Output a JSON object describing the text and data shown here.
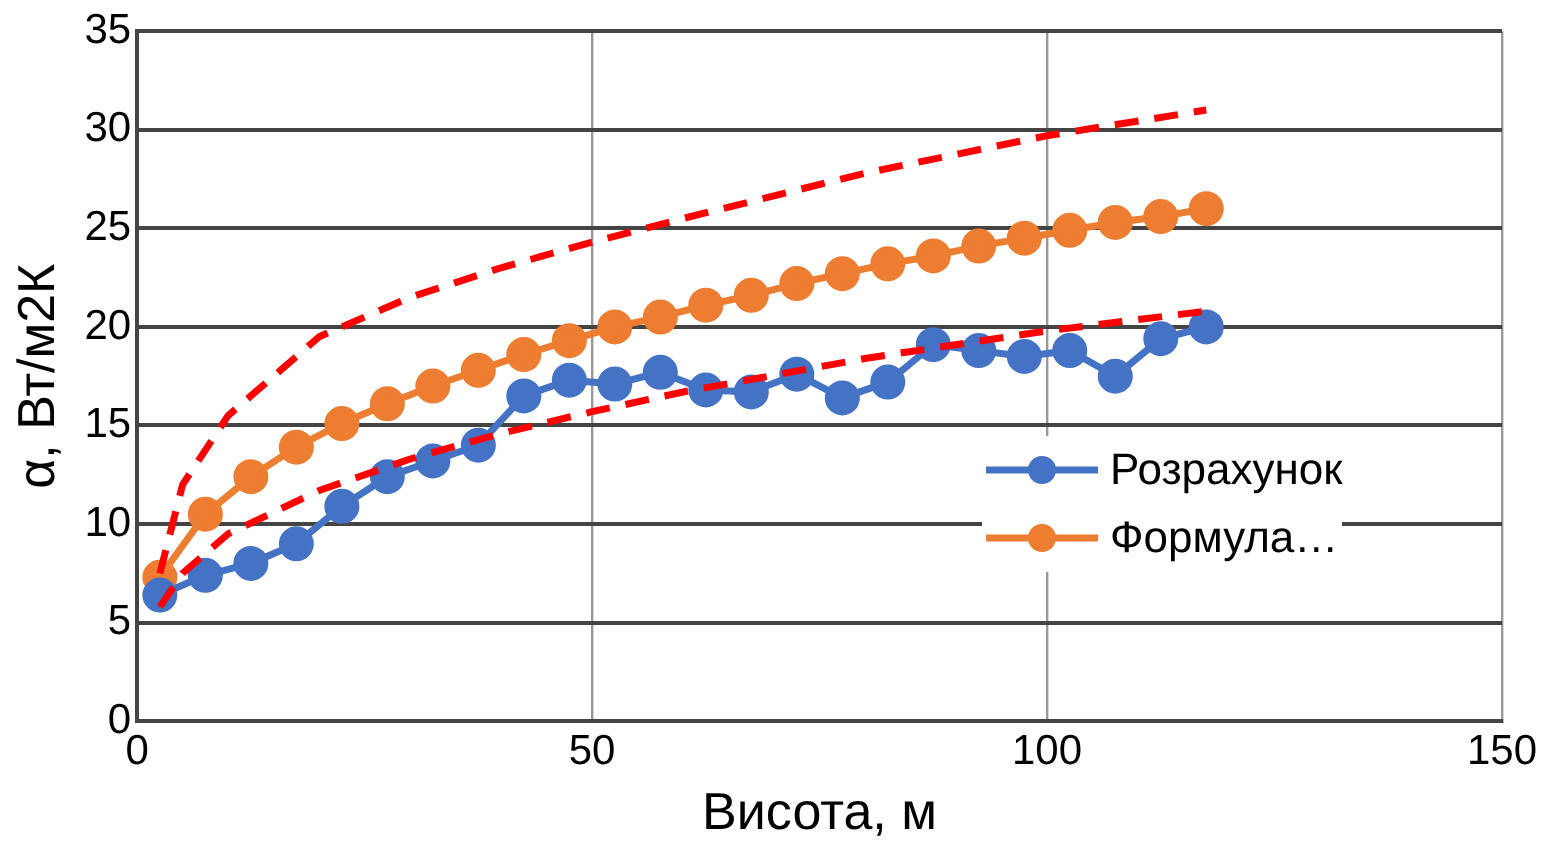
{
  "chart_data": {
    "type": "line",
    "xlabel": "Висота, м",
    "ylabel": "α, Вт/м2К",
    "xlim": [
      0,
      150
    ],
    "xticks": [
      0,
      50,
      100,
      150
    ],
    "ylim": [
      0,
      35
    ],
    "yticks": [
      0,
      5,
      10,
      15,
      20,
      25,
      30,
      35
    ],
    "grid": true,
    "legend": "right",
    "marker": "circle",
    "line_style": "solid",
    "x": [
      2.5,
      7.5,
      12.5,
      17.5,
      22.5,
      27.5,
      32.5,
      37.5,
      42.5,
      47.5,
      52.5,
      57.5,
      62.5,
      67.5,
      72.5,
      77.5,
      82.5,
      87.5,
      92.5,
      97.5,
      102.5,
      107.5,
      112.5,
      117.5
    ],
    "series": [
      {
        "name": "Розрахунок",
        "color": "#4472c4",
        "values": [
          6.4,
          7.4,
          8.0,
          9.0,
          10.9,
          12.4,
          13.2,
          14.0,
          16.5,
          17.3,
          17.1,
          17.7,
          16.8,
          16.7,
          17.6,
          16.4,
          17.2,
          19.1,
          18.8,
          18.5,
          18.8,
          17.5,
          19.4,
          20.0
        ]
      },
      {
        "name": "Формула…",
        "color": "#ed7d31",
        "values": [
          7.3,
          10.5,
          12.4,
          13.9,
          15.1,
          16.1,
          17.0,
          17.8,
          18.6,
          19.3,
          20.0,
          20.5,
          21.1,
          21.6,
          22.2,
          22.7,
          23.2,
          23.6,
          24.1,
          24.5,
          24.9,
          25.3,
          25.6,
          26.0
        ]
      },
      {
        "color": "#ff0000",
        "marker": "none",
        "line_style": "dashed",
        "x": [
          2.5,
          5,
          10,
          20,
          30,
          40,
          50,
          60,
          80,
          100,
          117.5
        ],
        "values": [
          7.5,
          12,
          15.5,
          19.5,
          21.5,
          23,
          24.3,
          25.5,
          27.8,
          29.7,
          31
        ]
      },
      {
        "color": "#ff0000",
        "marker": "none",
        "line_style": "dashed",
        "x": [
          2.5,
          5,
          10,
          20,
          30,
          40,
          50,
          60,
          80,
          100,
          117.5
        ],
        "values": [
          5.8,
          7.5,
          9.5,
          11.7,
          13.3,
          14.6,
          15.7,
          16.7,
          18.4,
          19.8,
          20.8
        ]
      }
    ]
  }
}
